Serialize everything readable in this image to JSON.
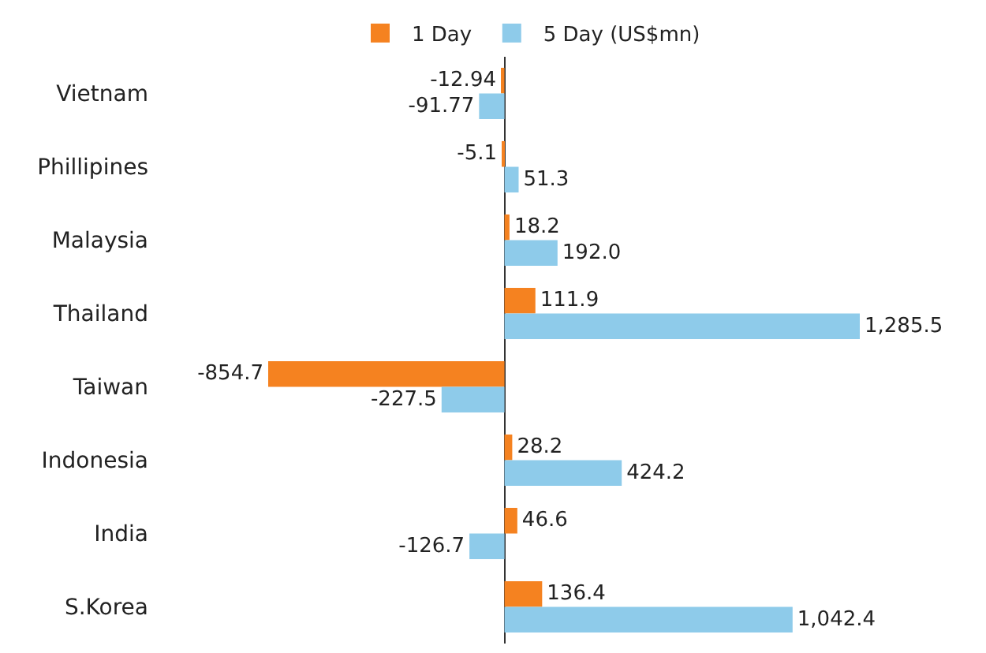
{
  "chart_data": {
    "type": "bar",
    "orientation": "horizontal",
    "categories": [
      "Vietnam",
      "Phillipines",
      "Malaysia",
      "Thailand",
      "Taiwan",
      "Indonesia",
      "India",
      "S.Korea"
    ],
    "series": [
      {
        "name": "1 Day",
        "color": "#f58220",
        "values": [
          -12.94,
          -5.1,
          18.2,
          111.9,
          -854.7,
          28.2,
          46.6,
          136.4
        ],
        "value_labels": [
          "-12.94",
          "-5.1",
          "18.2",
          "111.9",
          "-854.7",
          "28.2",
          "46.6",
          "136.4"
        ]
      },
      {
        "name": "5 Day (US$mn)",
        "color": "#8ecbea",
        "values": [
          -91.77,
          51.3,
          192.0,
          1285.5,
          -227.5,
          424.2,
          -126.7,
          1042.4
        ],
        "value_labels": [
          "-91.77",
          "51.3",
          "192.0",
          "1,285.5",
          "-227.5",
          "424.2",
          "-126.7",
          "1,042.4"
        ]
      }
    ],
    "legend": "top",
    "grid": false
  }
}
